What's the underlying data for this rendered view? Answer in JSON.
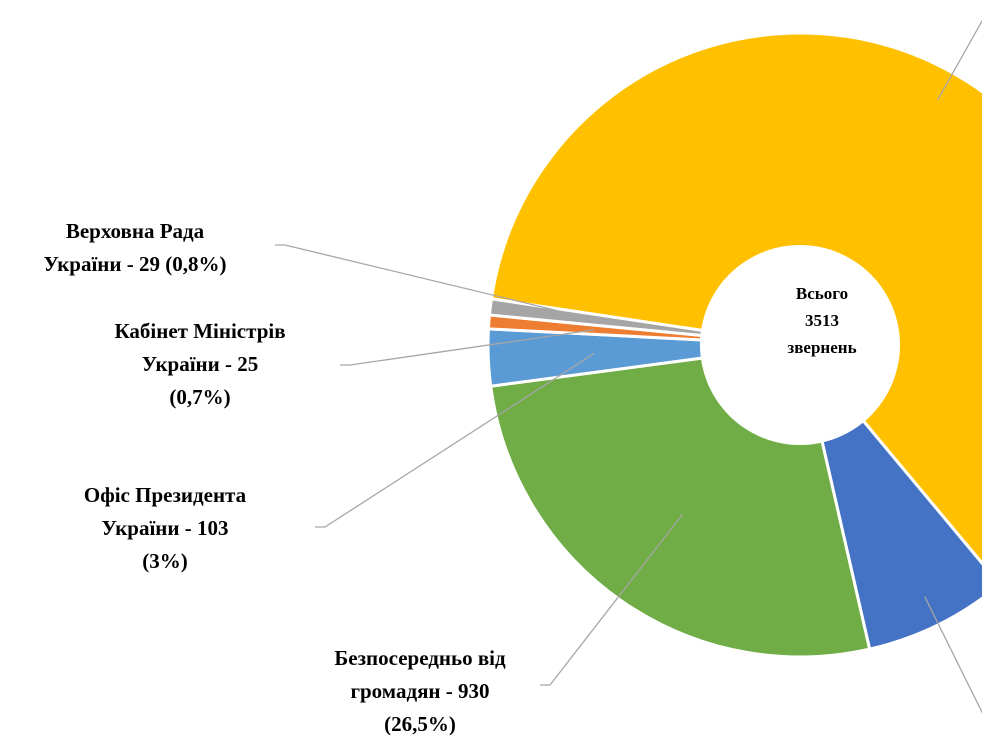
{
  "chart_data": {
    "type": "donut",
    "center_label": [
      "Всього",
      "3513",
      "звернень"
    ],
    "labels": [
      null,
      null,
      [
        "Безпосередньо від",
        "громадян - 930",
        "(26,5%)"
      ],
      [
        "Офіс Президента",
        "України -  103",
        "(3%)"
      ],
      [
        "Кабінет Міністрів",
        "України - 25",
        "(0,7%)"
      ],
      [
        "Верховна Рада",
        "України -  29 (0,8%)"
      ]
    ],
    "values": [
      2163,
      263,
      930,
      103,
      25,
      29
    ],
    "colors": [
      "#ffc000",
      "#4472c4",
      "#70ad47",
      "#5b9bd5",
      "#ed7d31",
      "#a5a5a5"
    ]
  }
}
